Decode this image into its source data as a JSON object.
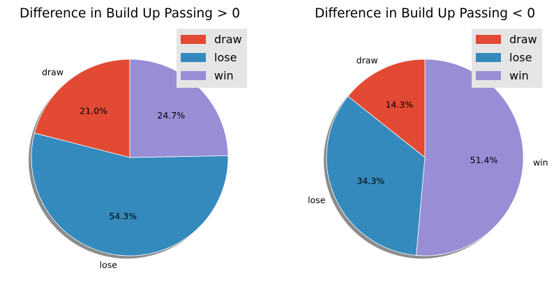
{
  "chart_data": [
    {
      "type": "pie",
      "title": "Difference in Build Up Passing > 0",
      "labels": [
        "draw",
        "lose",
        "win"
      ],
      "values": [
        21.0,
        54.3,
        24.7
      ],
      "value_labels": [
        "21.0%",
        "54.3%",
        "24.7%"
      ],
      "colors": [
        "#E24A33",
        "#348ABD",
        "#988ED5"
      ],
      "start_angle": 90,
      "direction": "counterclockwise",
      "shadow": true,
      "legend": {
        "position": "top-right",
        "entries": [
          "draw",
          "lose",
          "win"
        ]
      }
    },
    {
      "type": "pie",
      "title": "Difference in Build Up Passing < 0",
      "labels": [
        "draw",
        "lose",
        "win"
      ],
      "values": [
        14.3,
        34.3,
        51.4
      ],
      "value_labels": [
        "14.3%",
        "34.3%",
        "51.4%"
      ],
      "colors": [
        "#E24A33",
        "#348ABD",
        "#988ED5"
      ],
      "start_angle": 90,
      "direction": "counterclockwise",
      "shadow": true,
      "legend": {
        "position": "top-right",
        "entries": [
          "draw",
          "lose",
          "win"
        ]
      }
    }
  ]
}
